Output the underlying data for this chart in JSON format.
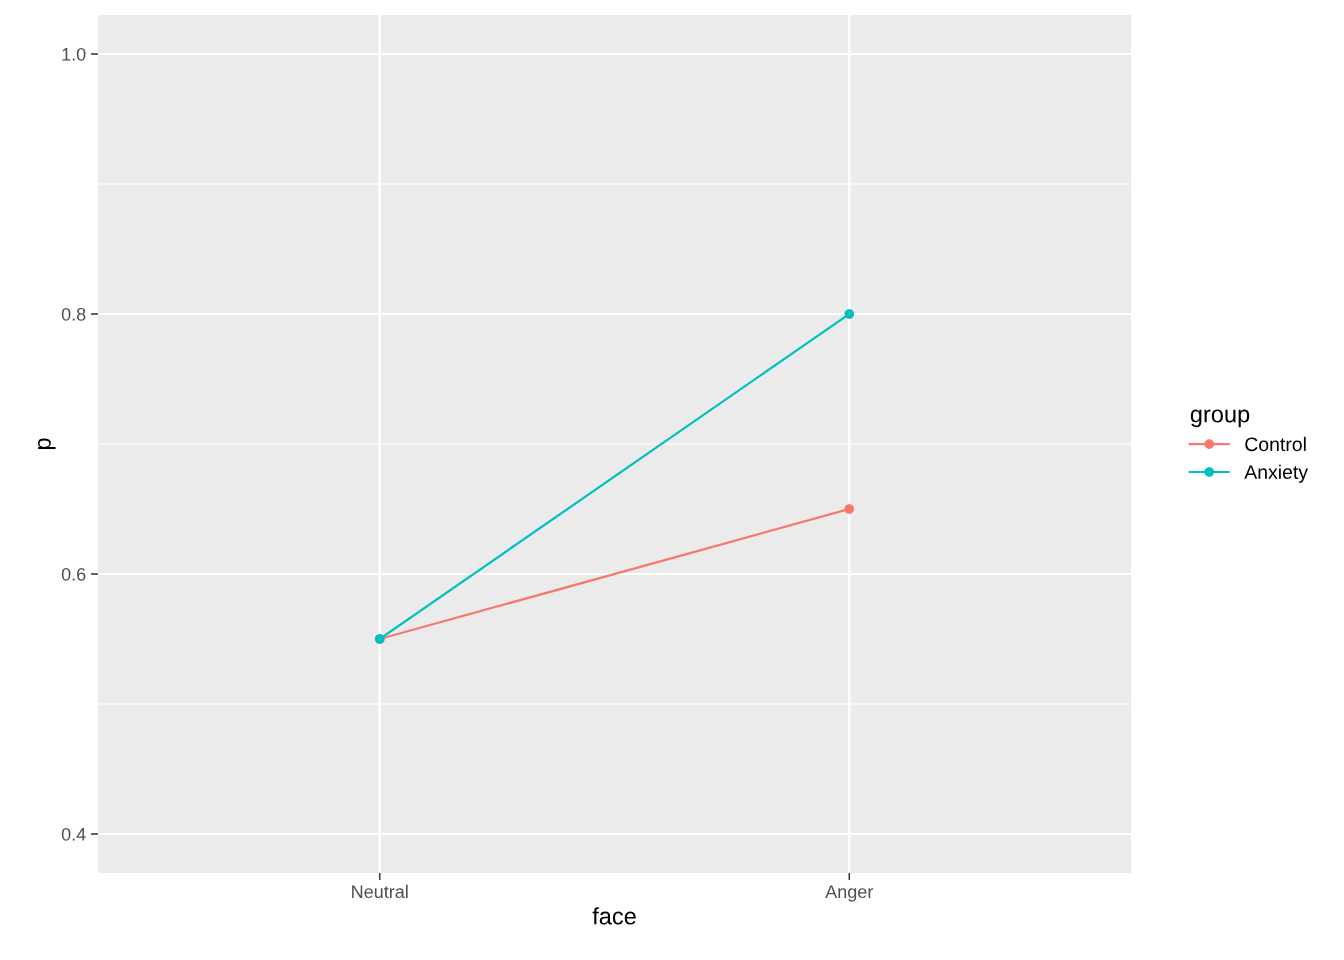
{
  "chart_data": {
    "type": "line",
    "xlabel": "face",
    "ylabel": "p",
    "legend_title": "group",
    "categories": [
      "Neutral",
      "Anger"
    ],
    "series": [
      {
        "name": "Control",
        "color": "#f8766d",
        "values": [
          0.55,
          0.65
        ]
      },
      {
        "name": "Anxiety",
        "color": "#00bfc4",
        "values": [
          0.55,
          0.8
        ]
      }
    ],
    "ylim": [
      0.37,
      1.03
    ],
    "yticks": [
      0.4,
      {
        "value": 0.5,
        "label": null
      },
      0.6,
      {
        "value": 0.7,
        "label": null
      },
      0.8,
      {
        "value": 0.9,
        "label": null
      },
      {
        "value": 1.0,
        "label": "1.0"
      }
    ],
    "grid": true,
    "legend": "right",
    "marker": "circle",
    "line_style": "solid"
  }
}
